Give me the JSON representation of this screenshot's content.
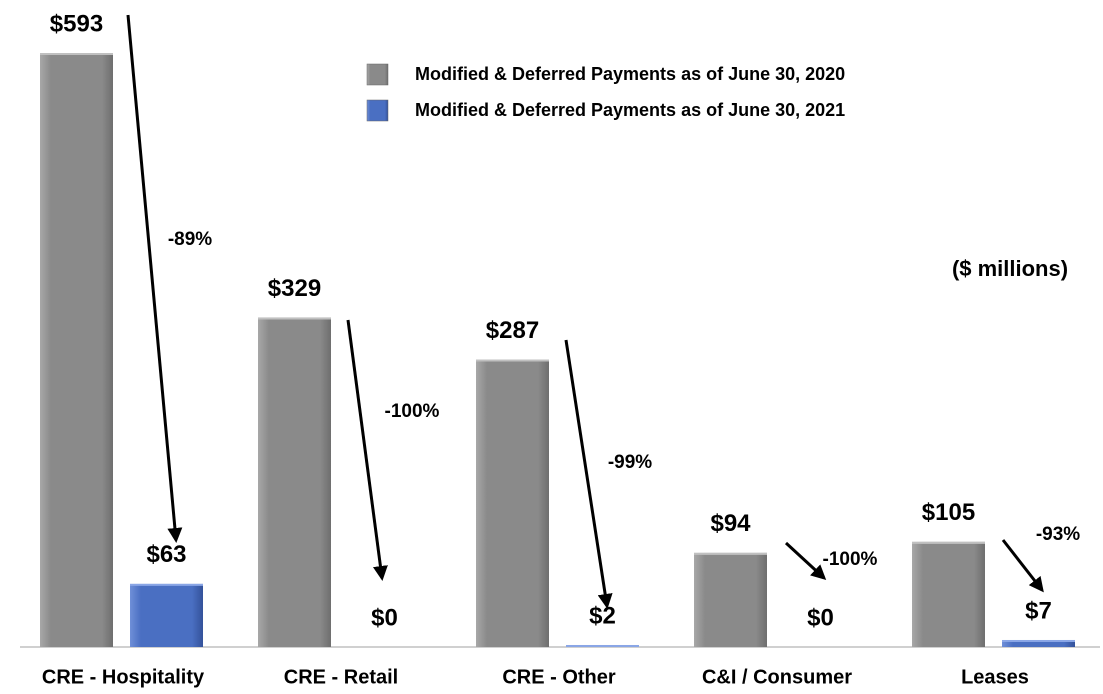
{
  "chart_data": {
    "type": "bar",
    "subtitle": "($ millions)",
    "categories": [
      "CRE - Hospitality",
      "CRE - Retail",
      "CRE - Other",
      "C&I / Consumer",
      "Leases"
    ],
    "series": [
      {
        "name": "Modified & Deferred Payments as of June 30, 2020",
        "color": "#8a8a8a",
        "values": [
          593,
          329,
          287,
          94,
          105
        ],
        "value_labels": [
          "$593",
          "$329",
          "$287",
          "$94",
          "$105"
        ]
      },
      {
        "name": "Modified & Deferred Payments as of June 30, 2021",
        "color": "#4a6fc2",
        "values": [
          63,
          0,
          2,
          0,
          7
        ],
        "value_labels": [
          "$63",
          "$0",
          "$2",
          "$0",
          "$7"
        ]
      }
    ],
    "annotations": [
      "-89%",
      "-100%",
      "-99%",
      "-100%",
      "-93%"
    ],
    "legend": "top"
  }
}
